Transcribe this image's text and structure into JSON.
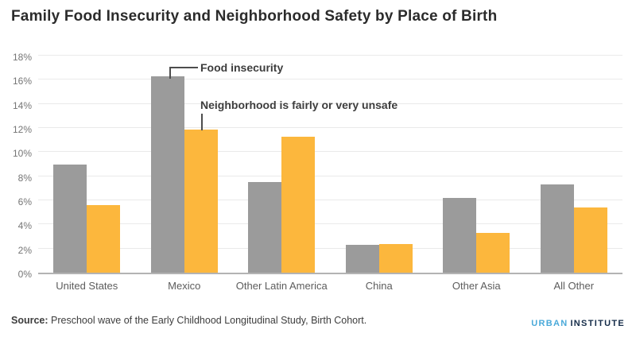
{
  "title": "Family Food Insecurity and Neighborhood Safety by Place of Birth",
  "source": {
    "label": "Source:",
    "text": " Preschool wave of the Early Childhood Longitudinal Study, Birth Cohort."
  },
  "logo": {
    "part1": "URBAN",
    "part2": "INSTITUTE",
    "urban_color": "#4aa9d9",
    "institute_color": "#152c49"
  },
  "colors": {
    "bar_gray": "#9b9b9b",
    "bar_yellow": "#fcb73d",
    "gridline": "#eaeaea",
    "axis_line": "#b3b3b3",
    "annotation_line": "#4d4d4d",
    "title_text": "#2b2b2b",
    "tick_text": "#757575"
  },
  "chart_data": {
    "type": "bar",
    "title": "Family Food Insecurity and Neighborhood Safety by Place of Birth",
    "categories": [
      "United States",
      "Mexico",
      "Other Latin America",
      "China",
      "Other Asia",
      "All Other"
    ],
    "series": [
      {
        "name": "Food insecurity",
        "color": "#9b9b9b",
        "values": [
          9.0,
          16.3,
          7.5,
          2.3,
          6.2,
          7.3
        ]
      },
      {
        "name": "Neighborhood is fairly or very unsafe",
        "color": "#fcb73d",
        "values": [
          5.6,
          11.9,
          11.3,
          2.4,
          3.3,
          5.4
        ]
      }
    ],
    "xlabel": "",
    "ylabel": "",
    "ylim": [
      0,
      18
    ],
    "ytick_step": 2,
    "ytick_suffix": "%",
    "grid": true,
    "legend_position": "in-plot annotations pointing to Mexico bars"
  }
}
